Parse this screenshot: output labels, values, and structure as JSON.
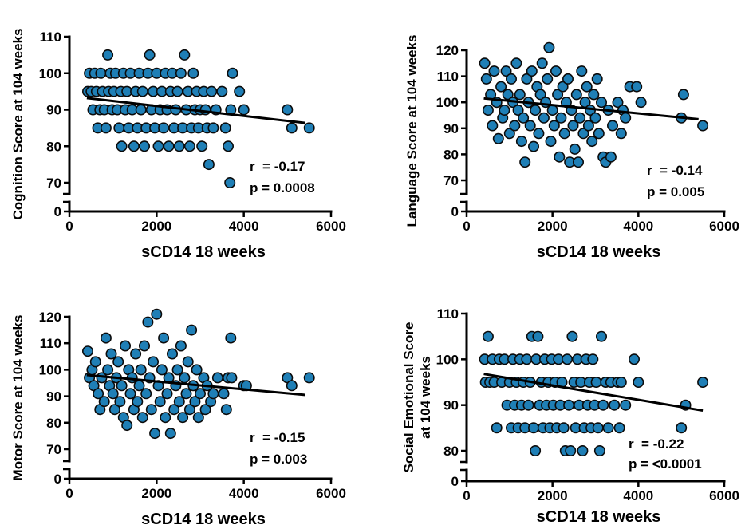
{
  "chart_data": [
    {
      "type": "scatter",
      "xlabel": "sCD14 18 weeks",
      "ylabel": [
        "Cognition Score at 104 weeks"
      ],
      "xlim": [
        0,
        6000
      ],
      "x_ticks": [
        0,
        2000,
        4000,
        6000
      ],
      "y_ticks": [
        0,
        70,
        80,
        90,
        100,
        110
      ],
      "y_break": [
        0,
        70
      ],
      "point_color": "#1f7fb6",
      "annotations": [
        "r  = -0.17",
        "p = 0.0008"
      ],
      "trendline": [
        [
          400,
          93.2
        ],
        [
          5400,
          86.4
        ]
      ],
      "points": [
        [
          420,
          95
        ],
        [
          460,
          100
        ],
        [
          500,
          95
        ],
        [
          540,
          90
        ],
        [
          580,
          100
        ],
        [
          620,
          95
        ],
        [
          650,
          85
        ],
        [
          700,
          90
        ],
        [
          720,
          100
        ],
        [
          760,
          95
        ],
        [
          800,
          90
        ],
        [
          840,
          85
        ],
        [
          880,
          105
        ],
        [
          900,
          95
        ],
        [
          940,
          100
        ],
        [
          980,
          90
        ],
        [
          1020,
          95
        ],
        [
          1060,
          100
        ],
        [
          1100,
          90
        ],
        [
          1140,
          85
        ],
        [
          1180,
          95
        ],
        [
          1200,
          80
        ],
        [
          1240,
          100
        ],
        [
          1280,
          90
        ],
        [
          1320,
          95
        ],
        [
          1360,
          85
        ],
        [
          1400,
          100
        ],
        [
          1440,
          90
        ],
        [
          1480,
          80
        ],
        [
          1520,
          95
        ],
        [
          1560,
          85
        ],
        [
          1600,
          100
        ],
        [
          1640,
          90
        ],
        [
          1680,
          95
        ],
        [
          1720,
          80
        ],
        [
          1760,
          85
        ],
        [
          1800,
          100
        ],
        [
          1840,
          105
        ],
        [
          1880,
          90
        ],
        [
          1920,
          95
        ],
        [
          1960,
          85
        ],
        [
          2000,
          100
        ],
        [
          2040,
          80
        ],
        [
          2080,
          90
        ],
        [
          2120,
          95
        ],
        [
          2160,
          85
        ],
        [
          2200,
          100
        ],
        [
          2240,
          90
        ],
        [
          2280,
          80
        ],
        [
          2320,
          95
        ],
        [
          2360,
          100
        ],
        [
          2400,
          85
        ],
        [
          2440,
          90
        ],
        [
          2480,
          95
        ],
        [
          2520,
          80
        ],
        [
          2560,
          100
        ],
        [
          2600,
          85
        ],
        [
          2640,
          105
        ],
        [
          2680,
          90
        ],
        [
          2720,
          95
        ],
        [
          2760,
          80
        ],
        [
          2800,
          85
        ],
        [
          2840,
          100
        ],
        [
          2880,
          90
        ],
        [
          2920,
          95
        ],
        [
          2960,
          85
        ],
        [
          3000,
          90
        ],
        [
          3040,
          80
        ],
        [
          3080,
          95
        ],
        [
          3120,
          90
        ],
        [
          3160,
          85
        ],
        [
          3200,
          75
        ],
        [
          3260,
          95
        ],
        [
          3300,
          85
        ],
        [
          3360,
          90
        ],
        [
          3500,
          95
        ],
        [
          3580,
          85
        ],
        [
          3640,
          80
        ],
        [
          3680,
          70
        ],
        [
          3700,
          90
        ],
        [
          3740,
          100
        ],
        [
          3900,
          95
        ],
        [
          4000,
          90
        ],
        [
          5000,
          90
        ],
        [
          5100,
          85
        ],
        [
          5500,
          85
        ]
      ]
    },
    {
      "type": "scatter",
      "xlabel": "sCD14 18 weeks",
      "ylabel": [
        "Language Score at 104 weeks"
      ],
      "xlim": [
        0,
        6000
      ],
      "x_ticks": [
        0,
        2000,
        4000,
        6000
      ],
      "y_ticks": [
        0,
        70,
        80,
        90,
        100,
        110,
        120
      ],
      "y_break": [
        0,
        70
      ],
      "point_color": "#1f7fb6",
      "annotations": [
        "r  = -0.14",
        "p = 0.005"
      ],
      "trendline": [
        [
          400,
          101.5
        ],
        [
          5400,
          93.5
        ]
      ],
      "points": [
        [
          420,
          115
        ],
        [
          460,
          109
        ],
        [
          500,
          97
        ],
        [
          560,
          103
        ],
        [
          600,
          91
        ],
        [
          640,
          112
        ],
        [
          700,
          100
        ],
        [
          740,
          86
        ],
        [
          800,
          106
        ],
        [
          840,
          94
        ],
        [
          880,
          97
        ],
        [
          920,
          112
        ],
        [
          960,
          103
        ],
        [
          1000,
          88
        ],
        [
          1040,
          109
        ],
        [
          1080,
          100
        ],
        [
          1120,
          91
        ],
        [
          1160,
          115
        ],
        [
          1200,
          97
        ],
        [
          1240,
          103
        ],
        [
          1280,
          85
        ],
        [
          1320,
          94
        ],
        [
          1360,
          77
        ],
        [
          1400,
          109
        ],
        [
          1440,
          100
        ],
        [
          1480,
          91
        ],
        [
          1520,
          112
        ],
        [
          1560,
          83
        ],
        [
          1600,
          97
        ],
        [
          1640,
          106
        ],
        [
          1680,
          88
        ],
        [
          1720,
          103
        ],
        [
          1760,
          115
        ],
        [
          1800,
          94
        ],
        [
          1840,
          100
        ],
        [
          1880,
          109
        ],
        [
          1920,
          121
        ],
        [
          1960,
          85
        ],
        [
          2000,
          97
        ],
        [
          2040,
          91
        ],
        [
          2080,
          112
        ],
        [
          2120,
          103
        ],
        [
          2160,
          79
        ],
        [
          2200,
          94
        ],
        [
          2240,
          106
        ],
        [
          2280,
          88
        ],
        [
          2320,
          100
        ],
        [
          2360,
          109
        ],
        [
          2400,
          77
        ],
        [
          2440,
          97
        ],
        [
          2480,
          91
        ],
        [
          2520,
          82
        ],
        [
          2560,
          103
        ],
        [
          2600,
          77
        ],
        [
          2640,
          94
        ],
        [
          2680,
          112
        ],
        [
          2720,
          88
        ],
        [
          2760,
          100
        ],
        [
          2800,
          106
        ],
        [
          2840,
          91
        ],
        [
          2880,
          97
        ],
        [
          2920,
          85
        ],
        [
          2960,
          103
        ],
        [
          3000,
          94
        ],
        [
          3040,
          109
        ],
        [
          3080,
          88
        ],
        [
          3140,
          100
        ],
        [
          3180,
          79
        ],
        [
          3240,
          77
        ],
        [
          3300,
          97
        ],
        [
          3360,
          79
        ],
        [
          3400,
          91
        ],
        [
          3520,
          100
        ],
        [
          3600,
          88
        ],
        [
          3640,
          97
        ],
        [
          3700,
          94
        ],
        [
          3800,
          106
        ],
        [
          3960,
          106
        ],
        [
          4060,
          100
        ],
        [
          5000,
          94
        ],
        [
          5050,
          103
        ],
        [
          5500,
          91
        ]
      ]
    },
    {
      "type": "scatter",
      "xlabel": "sCD14 18 weeks",
      "ylabel": [
        "Motor Score at 104 weeks"
      ],
      "xlim": [
        0,
        6000
      ],
      "x_ticks": [
        0,
        2000,
        4000,
        6000
      ],
      "y_ticks": [
        0,
        70,
        80,
        90,
        100,
        110,
        120
      ],
      "y_break": [
        0,
        70
      ],
      "point_color": "#1f7fb6",
      "annotations": [
        "r  = -0.15",
        "p = 0.003"
      ],
      "trendline": [
        [
          400,
          98.0
        ],
        [
          5400,
          90.5
        ]
      ],
      "points": [
        [
          420,
          107
        ],
        [
          460,
          97
        ],
        [
          520,
          100
        ],
        [
          560,
          94
        ],
        [
          600,
          103
        ],
        [
          660,
          91
        ],
        [
          700,
          85
        ],
        [
          740,
          97
        ],
        [
          800,
          88
        ],
        [
          840,
          112
        ],
        [
          880,
          100
        ],
        [
          920,
          94
        ],
        [
          960,
          106
        ],
        [
          1000,
          91
        ],
        [
          1040,
          85
        ],
        [
          1080,
          97
        ],
        [
          1120,
          103
        ],
        [
          1160,
          88
        ],
        [
          1200,
          94
        ],
        [
          1240,
          82
        ],
        [
          1280,
          109
        ],
        [
          1320,
          79
        ],
        [
          1360,
          100
        ],
        [
          1400,
          91
        ],
        [
          1440,
          97
        ],
        [
          1480,
          85
        ],
        [
          1520,
          106
        ],
        [
          1560,
          88
        ],
        [
          1600,
          94
        ],
        [
          1640,
          100
        ],
        [
          1680,
          82
        ],
        [
          1720,
          109
        ],
        [
          1760,
          91
        ],
        [
          1800,
          118
        ],
        [
          1840,
          97
        ],
        [
          1880,
          85
        ],
        [
          1920,
          103
        ],
        [
          1960,
          76
        ],
        [
          2000,
          121
        ],
        [
          2040,
          94
        ],
        [
          2080,
          88
        ],
        [
          2120,
          100
        ],
        [
          2160,
          112
        ],
        [
          2200,
          82
        ],
        [
          2240,
          91
        ],
        [
          2280,
          97
        ],
        [
          2320,
          76
        ],
        [
          2360,
          106
        ],
        [
          2400,
          85
        ],
        [
          2440,
          94
        ],
        [
          2480,
          100
        ],
        [
          2520,
          88
        ],
        [
          2560,
          109
        ],
        [
          2600,
          82
        ],
        [
          2640,
          97
        ],
        [
          2680,
          91
        ],
        [
          2720,
          103
        ],
        [
          2760,
          85
        ],
        [
          2800,
          115
        ],
        [
          2840,
          94
        ],
        [
          2880,
          88
        ],
        [
          2920,
          100
        ],
        [
          2960,
          82
        ],
        [
          3000,
          91
        ],
        [
          3080,
          97
        ],
        [
          3120,
          85
        ],
        [
          3160,
          94
        ],
        [
          3240,
          88
        ],
        [
          3300,
          91
        ],
        [
          3400,
          97
        ],
        [
          3540,
          91
        ],
        [
          3600,
          85
        ],
        [
          3640,
          97
        ],
        [
          3700,
          112
        ],
        [
          3720,
          97
        ],
        [
          4000,
          94
        ],
        [
          4060,
          94
        ],
        [
          5000,
          97
        ],
        [
          5100,
          94
        ],
        [
          5500,
          97
        ]
      ]
    },
    {
      "type": "scatter",
      "xlabel": "sCD14 18 weeks",
      "ylabel": [
        "Social Emotional Score",
        "at 104 weeks"
      ],
      "xlim": [
        0,
        6000
      ],
      "x_ticks": [
        0,
        2000,
        4000,
        6000
      ],
      "y_ticks": [
        0,
        80,
        90,
        100,
        110
      ],
      "y_break": [
        0,
        80
      ],
      "point_color": "#1f7fb6",
      "annotations": [
        "r  = -0.22",
        "p = <0.0001"
      ],
      "trendline": [
        [
          400,
          96.8
        ],
        [
          5500,
          88.8
        ]
      ],
      "points": [
        [
          420,
          100
        ],
        [
          440,
          95
        ],
        [
          500,
          105
        ],
        [
          540,
          95
        ],
        [
          600,
          100
        ],
        [
          640,
          95
        ],
        [
          700,
          85
        ],
        [
          760,
          100
        ],
        [
          820,
          95
        ],
        [
          880,
          100
        ],
        [
          940,
          90
        ],
        [
          1000,
          95
        ],
        [
          1040,
          85
        ],
        [
          1080,
          100
        ],
        [
          1120,
          90
        ],
        [
          1160,
          95
        ],
        [
          1200,
          85
        ],
        [
          1240,
          100
        ],
        [
          1280,
          90
        ],
        [
          1320,
          95
        ],
        [
          1360,
          85
        ],
        [
          1400,
          100
        ],
        [
          1440,
          90
        ],
        [
          1480,
          95
        ],
        [
          1520,
          105
        ],
        [
          1560,
          85
        ],
        [
          1600,
          80
        ],
        [
          1620,
          100
        ],
        [
          1660,
          105
        ],
        [
          1700,
          90
        ],
        [
          1740,
          95
        ],
        [
          1780,
          85
        ],
        [
          1820,
          100
        ],
        [
          1860,
          90
        ],
        [
          1900,
          95
        ],
        [
          1940,
          85
        ],
        [
          1980,
          100
        ],
        [
          2020,
          90
        ],
        [
          2060,
          95
        ],
        [
          2100,
          85
        ],
        [
          2140,
          100
        ],
        [
          2180,
          90
        ],
        [
          2220,
          95
        ],
        [
          2260,
          85
        ],
        [
          2300,
          80
        ],
        [
          2340,
          100
        ],
        [
          2380,
          90
        ],
        [
          2420,
          80
        ],
        [
          2460,
          105
        ],
        [
          2500,
          95
        ],
        [
          2540,
          85
        ],
        [
          2580,
          100
        ],
        [
          2620,
          90
        ],
        [
          2660,
          95
        ],
        [
          2700,
          80
        ],
        [
          2740,
          85
        ],
        [
          2780,
          100
        ],
        [
          2820,
          90
        ],
        [
          2860,
          95
        ],
        [
          2900,
          85
        ],
        [
          2940,
          100
        ],
        [
          2980,
          90
        ],
        [
          3020,
          95
        ],
        [
          3060,
          85
        ],
        [
          3100,
          80
        ],
        [
          3140,
          105
        ],
        [
          3180,
          90
        ],
        [
          3240,
          95
        ],
        [
          3300,
          85
        ],
        [
          3360,
          95
        ],
        [
          3440,
          90
        ],
        [
          3520,
          95
        ],
        [
          3560,
          85
        ],
        [
          3600,
          95
        ],
        [
          3700,
          90
        ],
        [
          3900,
          100
        ],
        [
          4000,
          95
        ],
        [
          5000,
          85
        ],
        [
          5100,
          90
        ],
        [
          5500,
          95
        ]
      ]
    }
  ]
}
